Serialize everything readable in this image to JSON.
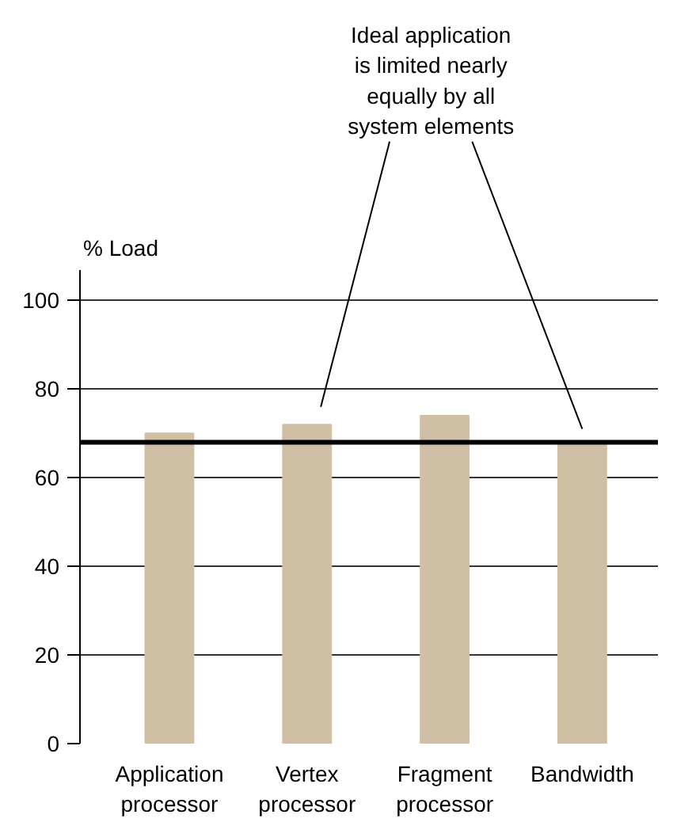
{
  "chart_data": {
    "type": "bar",
    "ylabel": "% Load",
    "categories": [
      "Application processor",
      "Vertex processor",
      "Fragment processor",
      "Bandwidth"
    ],
    "values": [
      70,
      72,
      74,
      68
    ],
    "color": "#cfbfa5",
    "ylim": [
      0,
      107
    ],
    "yticks": [
      0,
      20,
      40,
      60,
      80,
      100
    ],
    "grid": "y",
    "ref_lines": [
      {
        "axis": "y",
        "value": 68,
        "color": "#000000",
        "line_style": "solid"
      }
    ],
    "annotations": [
      "Ideal application\nis limited nearly\nequally by all\nsystem elements"
    ]
  }
}
